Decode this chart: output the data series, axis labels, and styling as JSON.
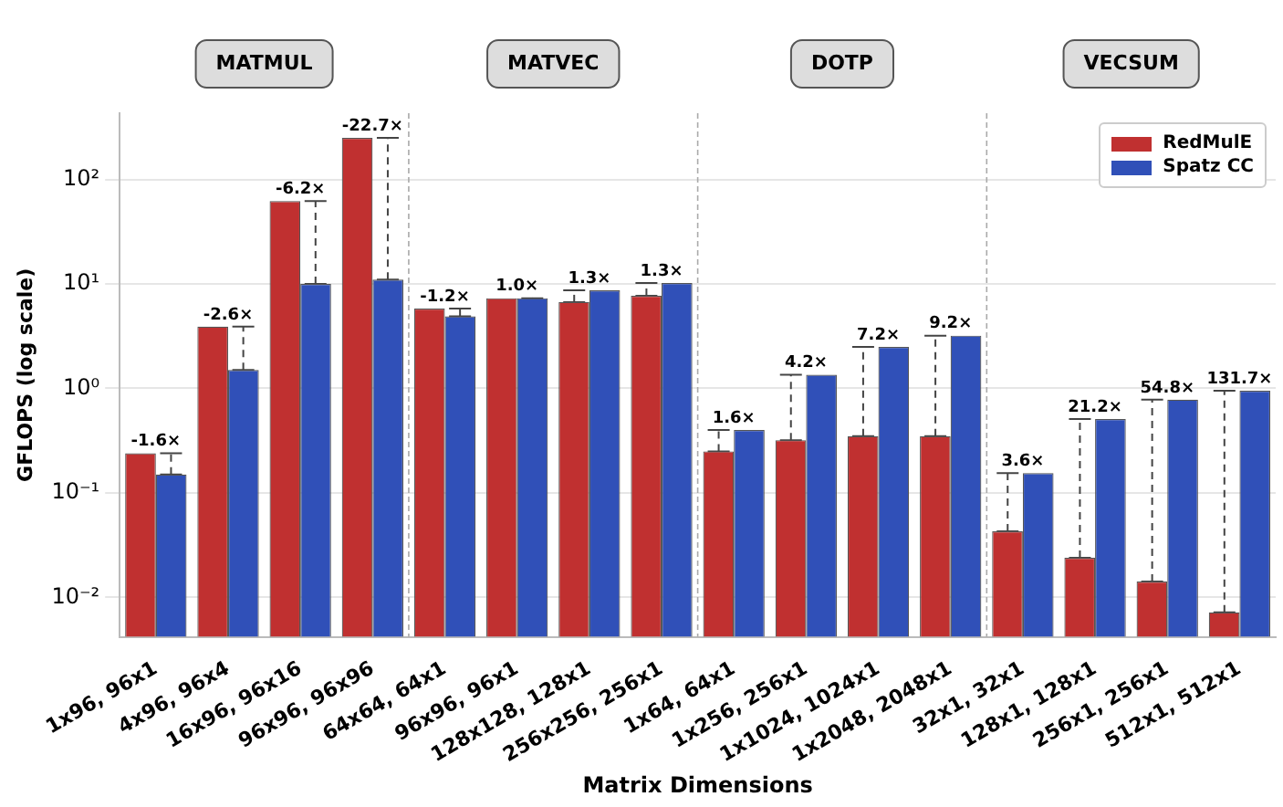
{
  "chart_data": {
    "type": "bar",
    "xlabel": "Matrix Dimensions",
    "ylabel": "GFLOPS (log scale)",
    "categories": [
      "1x96, 96x1",
      "4x96, 96x4",
      "16x96, 96x16",
      "96x96, 96x96",
      "64x64, 64x1",
      "96x96, 96x1",
      "128x128, 128x1",
      "256x256, 256x1",
      "1x64, 64x1",
      "1x256, 256x1",
      "1x1024, 1024x1",
      "1x2048, 2048x1",
      "32x1, 32x1",
      "128x1, 128x1",
      "256x1, 256x1",
      "512x1, 512x1"
    ],
    "series": [
      {
        "name": "RedMulE",
        "color": "#c03030",
        "values": [
          0.24,
          3.9,
          62,
          250,
          5.8,
          7.3,
          6.7,
          7.7,
          0.25,
          0.32,
          0.35,
          0.35,
          0.043,
          0.024,
          0.0142,
          0.0072
        ]
      },
      {
        "name": "Spatz CC",
        "color": "#3050b8",
        "values": [
          0.15,
          1.5,
          10,
          11,
          4.9,
          7.3,
          8.7,
          10.2,
          0.4,
          1.35,
          2.5,
          3.2,
          0.155,
          0.51,
          0.78,
          0.95
        ]
      }
    ],
    "log": true,
    "ylim": [
      0.0042,
      430
    ],
    "yticks": [
      {
        "value": 0.01,
        "label": "10⁻²"
      },
      {
        "value": 0.1,
        "label": "10⁻¹"
      },
      {
        "value": 1,
        "label": "10⁰"
      },
      {
        "value": 10,
        "label": "10¹"
      },
      {
        "value": 100,
        "label": "10²"
      }
    ],
    "grid": "y",
    "legend": "top right",
    "annotations": [
      "MATMUL",
      "MATVEC",
      "DOTP",
      "VECSUM",
      {
        "text": "-1.6×",
        "x": "1x96, 96x1",
        "y": 0.24
      },
      {
        "text": "-2.6×",
        "x": "4x96, 96x4",
        "y": 3.9
      },
      {
        "text": "-6.2×",
        "x": "16x96, 96x16",
        "y": 62
      },
      {
        "text": "-22.7×",
        "x": "96x96, 96x96",
        "y": 250
      },
      {
        "text": "-1.2×",
        "x": "64x64, 64x1",
        "y": 5.8
      },
      {
        "text": "1.0×",
        "x": "96x96, 96x1",
        "y": 7.3
      },
      {
        "text": "1.3×",
        "x": "128x128, 128x1",
        "y": 8.7
      },
      {
        "text": "1.3×",
        "x": "256x256, 256x1",
        "y": 10.2
      },
      {
        "text": "1.6×",
        "x": "1x64, 64x1",
        "y": 0.4
      },
      {
        "text": "4.2×",
        "x": "1x256, 256x1",
        "y": 1.35
      },
      {
        "text": "7.2×",
        "x": "1x1024, 1024x1",
        "y": 2.5
      },
      {
        "text": "9.2×",
        "x": "1x2048, 2048x1",
        "y": 3.2
      },
      {
        "text": "3.6×",
        "x": "32x1, 32x1",
        "y": 0.155
      },
      {
        "text": "21.2×",
        "x": "128x1, 128x1",
        "y": 0.51
      },
      {
        "text": "54.8×",
        "x": "256x1, 256x1",
        "y": 0.78
      },
      {
        "text": "131.7×",
        "x": "512x1, 512x1",
        "y": 0.95
      }
    ]
  }
}
